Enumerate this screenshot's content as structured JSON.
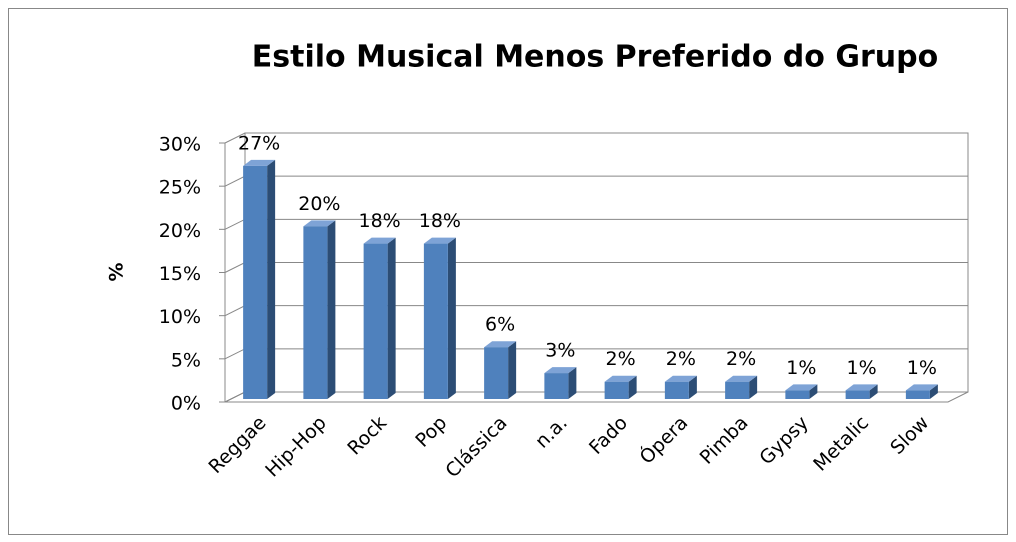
{
  "chart_data": {
    "type": "bar3d",
    "title": "Estilo Musical Menos Preferido do Grupo",
    "ylabel": "%",
    "categories": [
      "Reggae",
      "Hip-Hop",
      "Rock",
      "Pop",
      "Clássica",
      "n.a.",
      "Fado",
      "Ópera",
      "Pimba",
      "Gypsy",
      "Metalic",
      "Slow"
    ],
    "values": [
      27,
      20,
      18,
      18,
      6,
      3,
      2,
      2,
      2,
      1,
      1,
      1
    ],
    "value_labels": [
      "27%",
      "20%",
      "18%",
      "18%",
      "6%",
      "3%",
      "2%",
      "2%",
      "2%",
      "1%",
      "1%",
      "1%"
    ],
    "color": "#4f81bd",
    "ylim": [
      0,
      30
    ],
    "yticks": [
      {
        "value": 0,
        "label": "0%"
      },
      {
        "value": 5,
        "label": "5%"
      },
      {
        "value": 10,
        "label": "10%"
      },
      {
        "value": 15,
        "label": "15%"
      },
      {
        "value": 20,
        "label": "20%"
      },
      {
        "value": 25,
        "label": "25%"
      },
      {
        "value": 30,
        "label": "30%"
      }
    ],
    "grid": true
  }
}
